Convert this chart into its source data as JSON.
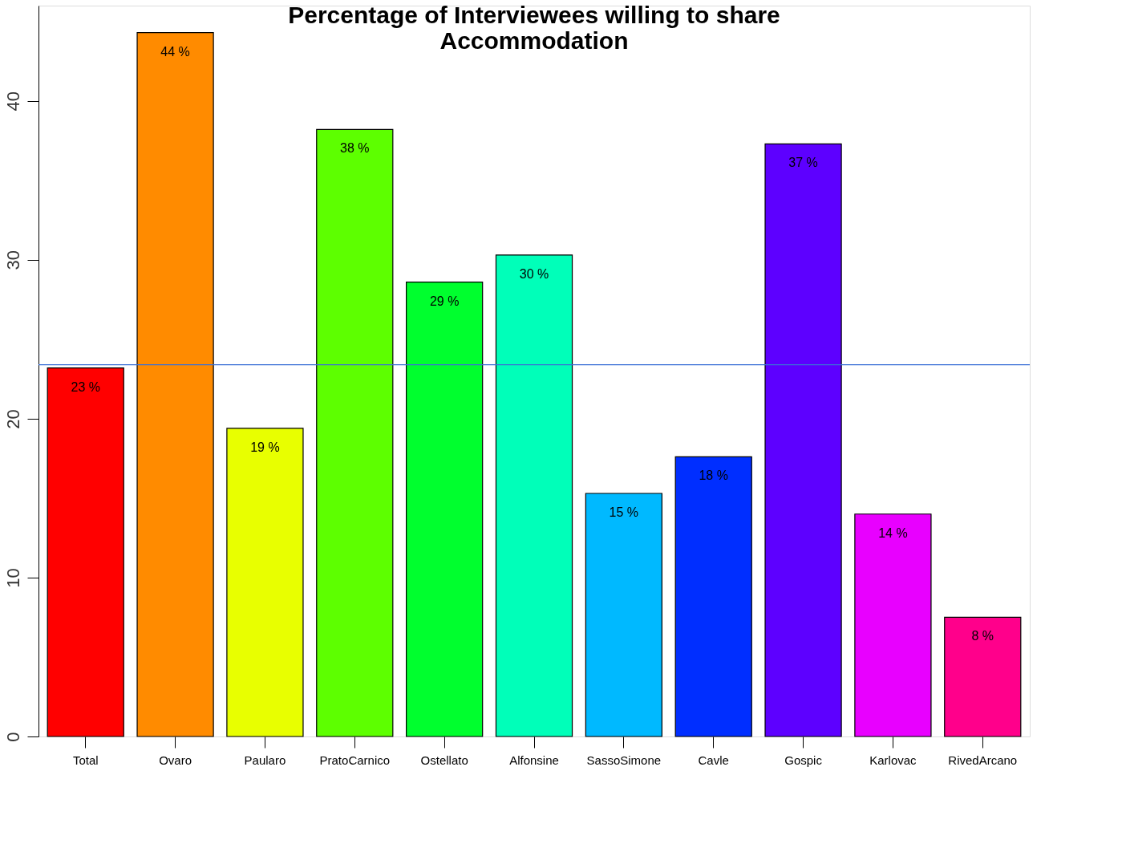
{
  "chart_data": {
    "type": "bar",
    "title": [
      "Percentage of Interviewees willing to share",
      "Accommodation"
    ],
    "categories": [
      "Total",
      "Ovaro",
      "Paularo",
      "PratoCarnico",
      "Ostellato",
      "Alfonsine",
      "SassoSimone",
      "Cavle",
      "Gospic",
      "Karlovac",
      "RivedArcano"
    ],
    "values": [
      23.2,
      44.3,
      19.4,
      38.2,
      28.6,
      30.3,
      15.3,
      17.6,
      37.3,
      14.0,
      7.5
    ],
    "value_labels": [
      "23 %",
      "44 %",
      "19 %",
      "38 %",
      "29 %",
      "30 %",
      "15 %",
      "18 %",
      "37 %",
      "14 %",
      "8 %"
    ],
    "colors": [
      "#ff0000",
      "#ff8b00",
      "#e8ff00",
      "#5dff00",
      "#00ff2e",
      "#00ffb9",
      "#00b9ff",
      "#002eff",
      "#5d00ff",
      "#e800ff",
      "#ff008b"
    ],
    "ylim": [
      0,
      46
    ],
    "yticks": [
      0,
      10,
      20,
      30,
      40
    ],
    "ref_lines": [
      {
        "axis": "y",
        "value": 23.4,
        "color": "#3b6fd6"
      }
    ],
    "grid": false,
    "legend": false
  }
}
